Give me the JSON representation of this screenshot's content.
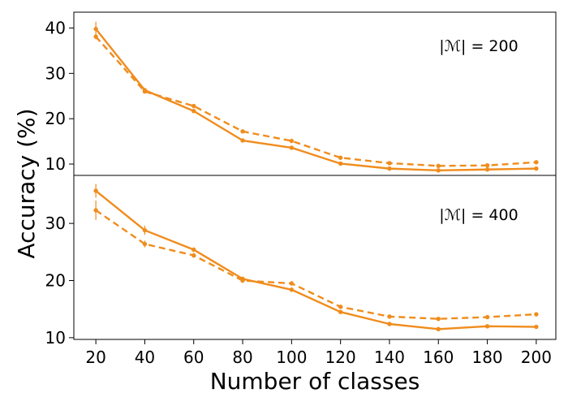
{
  "chart_data": {
    "type": "line",
    "shared": {
      "xlabel": "Number of classes",
      "ylabel": "Accuracy (%)",
      "x": [
        20,
        40,
        60,
        80,
        100,
        120,
        140,
        160,
        180,
        200
      ],
      "xticks": [
        "20",
        "40",
        "60",
        "80",
        "100",
        "120",
        "140",
        "160",
        "180",
        "200"
      ],
      "xlim": [
        11,
        208
      ],
      "color": "#f08c1c"
    },
    "panels": [
      {
        "annotation": "|ℳ| = 200",
        "ylim": [
          7.5,
          43.5
        ],
        "yticks": [
          10,
          20,
          30,
          40
        ],
        "series": [
          {
            "name": "solid",
            "style": "solid",
            "values": [
              39.8,
              26.3,
              21.7,
              15.2,
              13.6,
              10.1,
              9.0,
              8.6,
              8.8,
              9.0
            ],
            "err": [
              1.6,
              0.5,
              0.4,
              0.3,
              0.3,
              0.3,
              0.2,
              0.2,
              0.2,
              0.2
            ]
          },
          {
            "name": "dashed",
            "style": "dashed",
            "values": [
              38.1,
              26.0,
              22.8,
              17.2,
              15.1,
              11.4,
              10.2,
              9.6,
              9.7,
              10.4
            ],
            "err": [
              0.6,
              0.4,
              0.4,
              0.3,
              0.3,
              0.3,
              0.2,
              0.2,
              0.2,
              0.2
            ]
          }
        ]
      },
      {
        "annotation": "|ℳ| = 400",
        "ylim": [
          9.7,
          38.4
        ],
        "yticks": [
          10,
          20,
          30
        ],
        "series": [
          {
            "name": "solid",
            "style": "solid",
            "values": [
              35.7,
              28.8,
              25.4,
              20.3,
              18.4,
              14.5,
              12.4,
              11.5,
              12.0,
              11.9
            ],
            "err": [
              1.2,
              0.8,
              0.4,
              0.4,
              0.4,
              0.3,
              0.3,
              0.2,
              0.2,
              0.2
            ]
          },
          {
            "name": "dashed",
            "style": "dashed",
            "values": [
              32.3,
              26.4,
              24.4,
              20.0,
              19.5,
              15.4,
              13.7,
              13.3,
              13.6,
              14.1
            ],
            "err": [
              1.7,
              0.6,
              0.4,
              0.4,
              0.4,
              0.3,
              0.2,
              0.2,
              0.2,
              0.2
            ]
          }
        ]
      }
    ]
  }
}
